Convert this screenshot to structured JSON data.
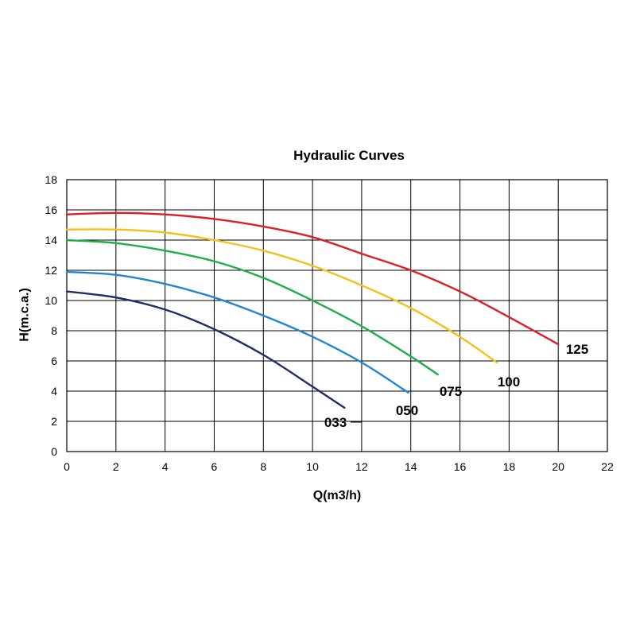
{
  "chart_data": {
    "type": "line",
    "title": "Hydraulic Curves",
    "xlabel": "Q(m3/h)",
    "ylabel": "H(m.c.a.)",
    "xlim": [
      0,
      22
    ],
    "ylim": [
      0,
      18
    ],
    "x_ticks": [
      "0",
      "2",
      "4",
      "6",
      "8",
      "10",
      "12",
      "14",
      "16",
      "18",
      "20",
      "22"
    ],
    "y_ticks": [
      "0",
      "2",
      "4",
      "6",
      "8",
      "10",
      "12",
      "14",
      "16",
      "18"
    ],
    "grid": true,
    "legend": "none",
    "series": [
      {
        "name": "033",
        "color": "#1f2d6b",
        "x": [
          0,
          2,
          4,
          6,
          8,
          10,
          11.3
        ],
        "y": [
          10.6,
          10.2,
          9.4,
          8.1,
          6.4,
          4.3,
          2.9
        ]
      },
      {
        "name": "050",
        "color": "#1f86cf",
        "x": [
          0,
          2,
          4,
          6,
          8,
          10,
          12,
          13.9
        ],
        "y": [
          11.9,
          11.7,
          11.1,
          10.2,
          9.0,
          7.6,
          5.9,
          3.9
        ]
      },
      {
        "name": "075",
        "color": "#1fae4a",
        "x": [
          0,
          2,
          4,
          6,
          8,
          10,
          12,
          14,
          15.1
        ],
        "y": [
          14.0,
          13.8,
          13.3,
          12.6,
          11.5,
          10.0,
          8.3,
          6.3,
          5.1
        ]
      },
      {
        "name": "100",
        "color": "#f2c21b",
        "x": [
          0,
          2,
          4,
          6,
          8,
          10,
          12,
          14,
          16,
          17.5
        ],
        "y": [
          14.7,
          14.7,
          14.5,
          14.0,
          13.3,
          12.3,
          11.0,
          9.5,
          7.6,
          5.9
        ]
      },
      {
        "name": "125",
        "color": "#dc1f26",
        "x": [
          0,
          2,
          4,
          6,
          8,
          10,
          12,
          14,
          16,
          18,
          20
        ],
        "y": [
          15.7,
          15.8,
          15.7,
          15.4,
          14.9,
          14.2,
          13.1,
          12.0,
          10.6,
          8.9,
          7.1
        ]
      }
    ]
  }
}
